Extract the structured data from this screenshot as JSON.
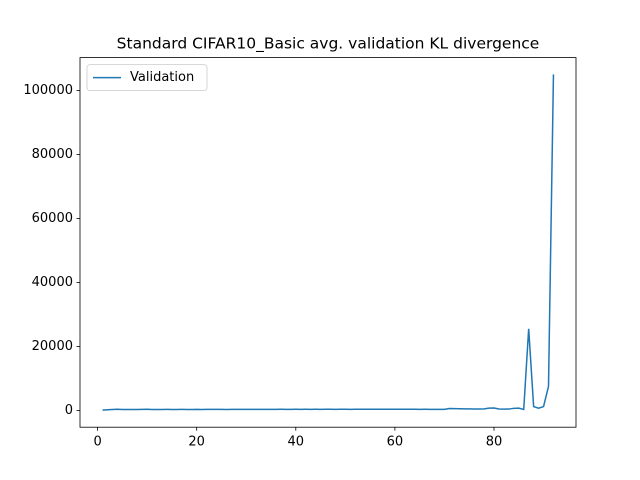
{
  "chart_data": {
    "type": "line",
    "title": "Standard CIFAR10_Basic avg. validation KL divergence",
    "x": [
      1,
      2,
      3,
      4,
      5,
      6,
      7,
      8,
      9,
      10,
      11,
      12,
      13,
      14,
      15,
      16,
      17,
      18,
      19,
      20,
      21,
      22,
      23,
      24,
      25,
      26,
      27,
      28,
      29,
      30,
      31,
      32,
      33,
      34,
      35,
      36,
      37,
      38,
      39,
      40,
      41,
      42,
      43,
      44,
      45,
      46,
      47,
      48,
      49,
      50,
      51,
      52,
      53,
      54,
      55,
      56,
      57,
      58,
      59,
      60,
      61,
      62,
      63,
      64,
      65,
      66,
      67,
      68,
      69,
      70,
      71,
      72,
      73,
      74,
      75,
      76,
      77,
      78,
      79,
      80,
      81,
      82,
      83,
      84,
      85,
      86,
      87,
      88,
      89,
      90,
      91,
      92
    ],
    "series": [
      {
        "name": "Validation",
        "color": "#1f77b4",
        "values": [
          100,
          200,
          300,
          350,
          300,
          280,
          300,
          300,
          320,
          350,
          300,
          300,
          300,
          310,
          300,
          300,
          310,
          300,
          300,
          320,
          300,
          310,
          320,
          320,
          310,
          300,
          320,
          320,
          310,
          320,
          330,
          320,
          320,
          330,
          320,
          330,
          340,
          330,
          330,
          340,
          330,
          340,
          330,
          340,
          330,
          340,
          340,
          330,
          340,
          340,
          330,
          340,
          340,
          350,
          340,
          340,
          350,
          340,
          350,
          350,
          340,
          350,
          340,
          340,
          330,
          340,
          330,
          330,
          320,
          330,
          600,
          550,
          500,
          480,
          470,
          450,
          440,
          460,
          700,
          750,
          450,
          400,
          420,
          650,
          700,
          300,
          25500,
          1200,
          700,
          1200,
          7500,
          105000
        ]
      }
    ],
    "xlim": [
      -3.55,
      96.55
    ],
    "xticks": [
      0,
      20,
      40,
      60,
      80
    ],
    "ylim": [
      -5250,
      110250
    ],
    "yticks": [
      0,
      20000,
      40000,
      60000,
      80000,
      100000
    ],
    "legend": "upper left"
  }
}
